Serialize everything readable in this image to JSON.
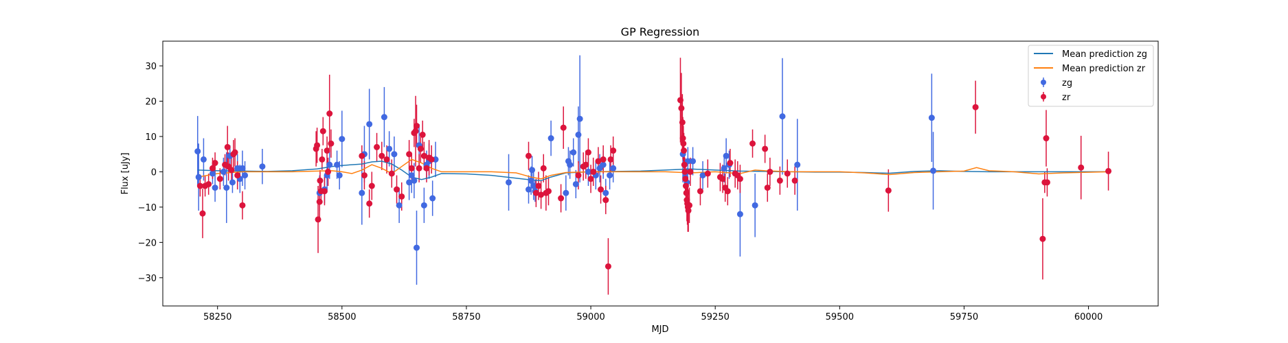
{
  "chart_data": {
    "type": "scatter",
    "title": "GP Regression",
    "xlabel": "MJD",
    "ylabel": "Flux [uJy]",
    "xlim": [
      58140,
      60140
    ],
    "ylim": [
      -38,
      37
    ],
    "xticks": [
      58250,
      58500,
      58750,
      59000,
      59250,
      59500,
      59750,
      60000
    ],
    "yticks": [
      -30,
      -20,
      -10,
      0,
      10,
      20,
      30
    ],
    "legend_placement": "top-right",
    "legend": [
      "Mean prediction zg",
      "Mean prediction zr",
      "zg",
      "zr"
    ],
    "colors": {
      "zg_points": "#4169e1",
      "zr_points": "#dc143c",
      "zg_line": "#1f77b4",
      "zr_line": "#ff7f0e"
    },
    "lines": [
      {
        "name": "Mean prediction zg",
        "x": [
          58210,
          58250,
          58300,
          58350,
          58400,
          58450,
          58480,
          58500,
          58520,
          58540,
          58560,
          58580,
          58600,
          58620,
          58640,
          58660,
          58680,
          58700,
          58750,
          58800,
          58850,
          58880,
          58900,
          58920,
          58950,
          59000,
          59050,
          59100,
          59150,
          59200,
          59250,
          59300,
          59350,
          59400,
          59450,
          59500,
          59550,
          59600,
          59650,
          59700,
          59750,
          59800,
          59850,
          59900,
          59950,
          60040
        ],
        "y": [
          0.5,
          0.3,
          0.2,
          0.1,
          0.3,
          0.8,
          1.5,
          1.8,
          2.0,
          2.2,
          2.8,
          3.0,
          2.2,
          0.5,
          -1.5,
          -2.2,
          -1.5,
          -0.5,
          -0.6,
          -1.0,
          -1.8,
          -2.3,
          -2.5,
          -1.5,
          -0.3,
          0.0,
          0.1,
          0.2,
          0.5,
          0.8,
          0.5,
          0.2,
          0.1,
          0.0,
          -0.1,
          -0.1,
          -0.2,
          -0.4,
          0.1,
          0.3,
          0.1,
          0.0,
          0.0,
          0.0,
          0.0,
          0.0
        ]
      },
      {
        "name": "Mean prediction zr",
        "x": [
          58210,
          58250,
          58300,
          58350,
          58400,
          58450,
          58480,
          58500,
          58520,
          58540,
          58560,
          58580,
          58600,
          58620,
          58640,
          58660,
          58680,
          58700,
          58750,
          58800,
          58850,
          58880,
          58900,
          58920,
          58950,
          59000,
          59050,
          59100,
          59150,
          59200,
          59250,
          59300,
          59330,
          59350,
          59400,
          59450,
          59500,
          59550,
          59600,
          59650,
          59700,
          59750,
          59775,
          59800,
          59850,
          59900,
          59950,
          60040
        ],
        "y": [
          -1.5,
          -0.5,
          0.0,
          0.0,
          0.0,
          0.2,
          0.3,
          0.0,
          -0.5,
          0.5,
          2.0,
          1.0,
          -0.5,
          1.5,
          3.5,
          2.5,
          1.0,
          0.0,
          0.0,
          0.0,
          -0.3,
          -1.5,
          -2.0,
          -1.0,
          -0.2,
          0.0,
          0.0,
          0.0,
          0.0,
          -0.3,
          0.0,
          -0.5,
          0.5,
          0.3,
          0.0,
          0.0,
          0.0,
          -0.3,
          -0.8,
          -0.2,
          0.0,
          0.2,
          1.2,
          0.3,
          0.0,
          -0.6,
          -0.3,
          0.0
        ]
      }
    ],
    "series": [
      {
        "name": "zg",
        "points": [
          [
            58210,
            5.8,
            10
          ],
          [
            58212,
            -1.5,
            9.5
          ],
          [
            58222,
            3.5,
            6
          ],
          [
            58240,
            -0.5,
            3
          ],
          [
            58245,
            -4.5,
            4
          ],
          [
            58262,
            0,
            4
          ],
          [
            58268,
            -4.5,
            10
          ],
          [
            58275,
            4.5,
            3
          ],
          [
            58280,
            -3,
            3
          ],
          [
            58290,
            1,
            4
          ],
          [
            58295,
            -2,
            4
          ],
          [
            58300,
            1,
            5
          ],
          [
            58305,
            -1,
            4
          ],
          [
            58340,
            1.5,
            5
          ],
          [
            58455,
            -6,
            5
          ],
          [
            58465,
            -5,
            4
          ],
          [
            58470,
            -1,
            4
          ],
          [
            58475,
            2,
            4
          ],
          [
            58490,
            2,
            4
          ],
          [
            58495,
            -1,
            4
          ],
          [
            58500,
            9.3,
            8
          ],
          [
            58540,
            -6,
            9
          ],
          [
            58545,
            5,
            8
          ],
          [
            58555,
            13.5,
            10
          ],
          [
            58585,
            15.5,
            8.5
          ],
          [
            58595,
            6.5,
            5
          ],
          [
            58605,
            5,
            5
          ],
          [
            58615,
            -9.5,
            5
          ],
          [
            58635,
            -3,
            5
          ],
          [
            58640,
            -1,
            5
          ],
          [
            58645,
            -2.5,
            5
          ],
          [
            58650,
            -21.5,
            10.5
          ],
          [
            58655,
            7.5,
            6
          ],
          [
            58665,
            -9.5,
            5
          ],
          [
            58670,
            2,
            4
          ],
          [
            58675,
            3,
            5
          ],
          [
            58682,
            -7.5,
            5
          ],
          [
            58688,
            3.5,
            5
          ],
          [
            58835,
            -3,
            8
          ],
          [
            58875,
            -5,
            4
          ],
          [
            58880,
            -2.5,
            4
          ],
          [
            58882,
            0.5,
            4
          ],
          [
            58885,
            -4,
            4
          ],
          [
            58888,
            -5.5,
            3
          ],
          [
            58920,
            9.5,
            5
          ],
          [
            58950,
            -6,
            5
          ],
          [
            58955,
            3,
            4
          ],
          [
            58958,
            2,
            4
          ],
          [
            58965,
            5.5,
            4
          ],
          [
            58970,
            -3.5,
            4
          ],
          [
            58975,
            10.5,
            8
          ],
          [
            58978,
            15,
            18
          ],
          [
            58995,
            0,
            4
          ],
          [
            59010,
            -1,
            4
          ],
          [
            59018,
            1,
            4
          ],
          [
            59025,
            2,
            4
          ],
          [
            59030,
            -6,
            4
          ],
          [
            59038,
            -1,
            4
          ],
          [
            59045,
            1,
            4
          ],
          [
            59185,
            5,
            8
          ],
          [
            59190,
            -1.5,
            4
          ],
          [
            59193,
            -3,
            4
          ],
          [
            59195,
            3,
            4
          ],
          [
            59205,
            3,
            4
          ],
          [
            59225,
            -1,
            4
          ],
          [
            59268,
            1,
            4
          ],
          [
            59272,
            4.5,
            5
          ],
          [
            59278,
            2,
            4
          ],
          [
            59300,
            -12,
            12
          ],
          [
            59330,
            -9.5,
            9
          ],
          [
            59385,
            15.7,
            16.5
          ],
          [
            59415,
            2,
            13
          ],
          [
            59685,
            15.3,
            12.5
          ],
          [
            59688,
            0.3,
            11
          ]
        ]
      },
      {
        "name": "zr",
        "points": [
          [
            58215,
            -4,
            3
          ],
          [
            58220,
            -11.8,
            7
          ],
          [
            58225,
            -4,
            3
          ],
          [
            58232,
            -3.5,
            3
          ],
          [
            58240,
            1,
            3
          ],
          [
            58245,
            2.5,
            3
          ],
          [
            58255,
            -2,
            3
          ],
          [
            58265,
            2,
            3
          ],
          [
            58270,
            7,
            6
          ],
          [
            58272,
            1.5,
            4
          ],
          [
            58278,
            0.5,
            4
          ],
          [
            58282,
            5,
            4
          ],
          [
            58285,
            5.5,
            4
          ],
          [
            58290,
            -1,
            4
          ],
          [
            58300,
            -9.5,
            4
          ],
          [
            58448,
            6.5,
            5
          ],
          [
            58450,
            7.5,
            5
          ],
          [
            58452,
            -13.5,
            9.5
          ],
          [
            58455,
            -8.5,
            5
          ],
          [
            58456,
            -2.5,
            3
          ],
          [
            58458,
            -5.5,
            3
          ],
          [
            58460,
            3.5,
            3
          ],
          [
            58462,
            11.5,
            4
          ],
          [
            58465,
            -5.5,
            4
          ],
          [
            58470,
            6,
            4
          ],
          [
            58472,
            0,
            4
          ],
          [
            58475,
            16.5,
            11
          ],
          [
            58478,
            8,
            4
          ],
          [
            58540,
            4.5,
            3
          ],
          [
            58545,
            -1,
            4
          ],
          [
            58555,
            -9,
            4
          ],
          [
            58560,
            -4,
            4
          ],
          [
            58570,
            7,
            4
          ],
          [
            58580,
            4.5,
            4
          ],
          [
            58590,
            3.5,
            4
          ],
          [
            58600,
            -0.5,
            4
          ],
          [
            58610,
            -5,
            4
          ],
          [
            58620,
            -7,
            4
          ],
          [
            58635,
            5,
            4
          ],
          [
            58640,
            1,
            4
          ],
          [
            58645,
            11,
            4
          ],
          [
            58648,
            11.5,
            10
          ],
          [
            58650,
            13,
            6
          ],
          [
            58655,
            1,
            4
          ],
          [
            58658,
            6.5,
            4
          ],
          [
            58662,
            10.5,
            4
          ],
          [
            58665,
            4.5,
            4
          ],
          [
            58670,
            1,
            4
          ],
          [
            58675,
            4,
            5
          ],
          [
            58680,
            3.5,
            4
          ],
          [
            58875,
            4.5,
            4
          ],
          [
            58890,
            -6,
            4
          ],
          [
            58895,
            -4,
            4
          ],
          [
            58900,
            -6.5,
            4
          ],
          [
            58905,
            1,
            4
          ],
          [
            58910,
            -6,
            5
          ],
          [
            58915,
            -5.5,
            4
          ],
          [
            58940,
            -7.5,
            4
          ],
          [
            58945,
            12.5,
            6
          ],
          [
            58975,
            -1,
            4
          ],
          [
            58985,
            1.5,
            4
          ],
          [
            58990,
            2,
            4
          ],
          [
            58995,
            5.5,
            4
          ],
          [
            59000,
            -2,
            4
          ],
          [
            59005,
            0,
            4
          ],
          [
            59015,
            3,
            4
          ],
          [
            59020,
            -5,
            4
          ],
          [
            59025,
            3.5,
            4
          ],
          [
            59030,
            -8,
            4
          ],
          [
            59035,
            -26.8,
            8
          ],
          [
            59040,
            3.5,
            4
          ],
          [
            59045,
            6,
            4
          ],
          [
            59180,
            20.3,
            12
          ],
          [
            59182,
            18,
            10
          ],
          [
            59184,
            14,
            8
          ],
          [
            59185,
            9.5,
            6
          ],
          [
            59186,
            8,
            5
          ],
          [
            59187,
            6,
            5
          ],
          [
            59188,
            2,
            4
          ],
          [
            59189,
            0,
            4
          ],
          [
            59190,
            -2,
            4
          ],
          [
            59191,
            -4,
            4
          ],
          [
            59192,
            -6,
            5
          ],
          [
            59193,
            -8,
            6
          ],
          [
            59194,
            -9,
            6
          ],
          [
            59195,
            -10,
            7
          ],
          [
            59196,
            -11,
            6
          ],
          [
            59198,
            -9.5,
            5
          ],
          [
            59200,
            0,
            4
          ],
          [
            59220,
            -5.5,
            4
          ],
          [
            59235,
            -0.5,
            4
          ],
          [
            59260,
            -1.5,
            4
          ],
          [
            59265,
            -2,
            4
          ],
          [
            59270,
            -4.5,
            4
          ],
          [
            59275,
            -5.5,
            4
          ],
          [
            59280,
            2.5,
            4
          ],
          [
            59290,
            -0.5,
            4
          ],
          [
            59295,
            -1,
            4
          ],
          [
            59300,
            -2,
            4
          ],
          [
            59325,
            8,
            4
          ],
          [
            59350,
            6.5,
            4
          ],
          [
            59355,
            -4.5,
            4
          ],
          [
            59360,
            0,
            4
          ],
          [
            59380,
            -2.5,
            4
          ],
          [
            59395,
            -0.5,
            4
          ],
          [
            59410,
            -2.5,
            4
          ],
          [
            59598,
            -5.3,
            6
          ],
          [
            59773,
            18.3,
            7.5
          ],
          [
            59908,
            -19,
            11.5
          ],
          [
            59912,
            -3,
            3
          ],
          [
            59915,
            9.5,
            8
          ],
          [
            59917,
            -3,
            4
          ],
          [
            59985,
            1.2,
            9
          ],
          [
            60040,
            0.2,
            5.5
          ]
        ]
      }
    ]
  }
}
